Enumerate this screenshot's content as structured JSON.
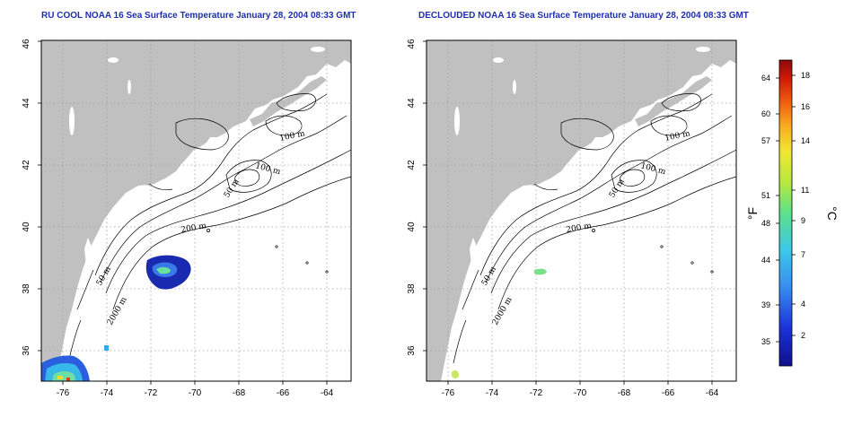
{
  "panels": [
    {
      "title": "RU COOL NOAA 16 Sea Surface Temperature January 28, 2004 08:33 GMT",
      "contour_labels": [
        "100 m",
        "100 m",
        "50 m",
        "200 m",
        "50 m",
        "2000 m"
      ]
    },
    {
      "title": "DECLOUDED NOAA 16 Sea Surface Temperature January 28, 2004 08:33 GMT",
      "contour_labels": [
        "100 m",
        "100 m",
        "50 m",
        "200 m",
        "50 m",
        "2000 m"
      ]
    }
  ],
  "axes": {
    "lon_ticks": [
      "-76",
      "-74",
      "-72",
      "-70",
      "-68",
      "-66",
      "-64"
    ],
    "lat_ticks": [
      "36",
      "38",
      "40",
      "42",
      "44",
      "46"
    ]
  },
  "colorbar": {
    "f_label": "°F",
    "c_label": "°C",
    "f_ticks": [
      "64",
      "60",
      "57",
      "51",
      "48",
      "44",
      "39",
      "35"
    ],
    "c_ticks": [
      "18",
      "16",
      "14",
      "11",
      "9",
      "7",
      "4",
      "2"
    ]
  },
  "colors": {
    "land": "#c0c0c0",
    "water": "#ffffff",
    "grid": "#a0a0a0",
    "title": "#1f2fae",
    "sst_low": "#1a1aa0",
    "sst_mid": "#3ab0e0",
    "sst_high": "#c00000"
  }
}
